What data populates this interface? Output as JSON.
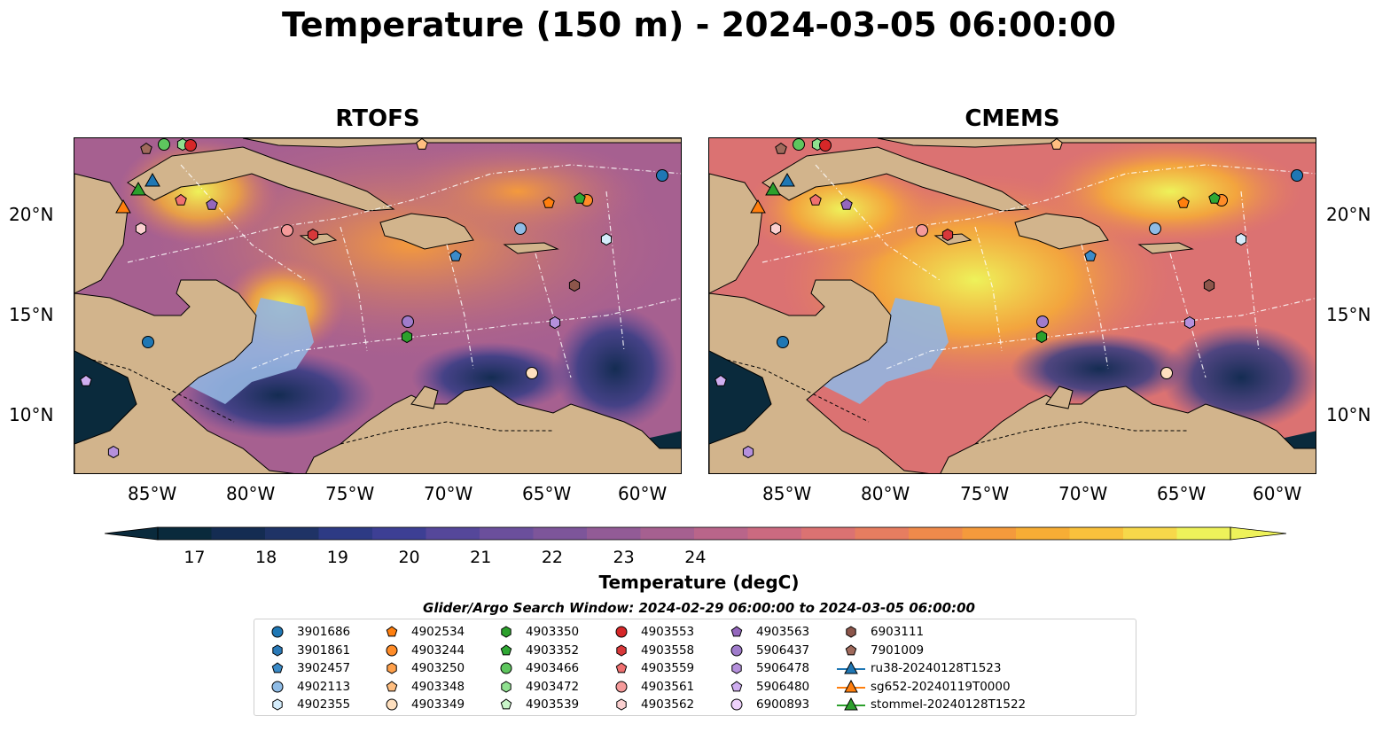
{
  "title": "Temperature (150 m) - 2024-03-05 06:00:00",
  "panels": [
    {
      "title": "RTOFS"
    },
    {
      "title": "CMEMS"
    }
  ],
  "axes": {
    "x_ticks": [
      "85°W",
      "80°W",
      "75°W",
      "70°W",
      "65°W",
      "60°W"
    ],
    "y_ticks": [
      "20°N",
      "15°N",
      "10°N"
    ]
  },
  "colorbar": {
    "ticks": [
      "17",
      "18",
      "19",
      "20",
      "21",
      "22",
      "23",
      "24"
    ],
    "label": "Temperature (degC)",
    "range": [
      16.5,
      24.75
    ],
    "extend": "both",
    "colors": [
      "#0a2a3c",
      "#142c52",
      "#1f3366",
      "#2d3a84",
      "#3d3f94",
      "#55479a",
      "#6b4f9c",
      "#7d559a",
      "#925b96",
      "#a66090",
      "#b9658a",
      "#cb6a80",
      "#db7272",
      "#e67d60",
      "#ef8a4b",
      "#f49a3c",
      "#f7ad35",
      "#f9c13c",
      "#f7d84a",
      "#eef25a"
    ]
  },
  "search_window": "Glider/Argo Search Window: 2024-02-29 06:00:00 to 2024-03-05 06:00:00",
  "legend": [
    {
      "label": "3901686",
      "marker": "circle",
      "color": "#1f77b4"
    },
    {
      "label": "3901861",
      "marker": "hexagon",
      "color": "#2a7ab8"
    },
    {
      "label": "3902457",
      "marker": "pentagon",
      "color": "#3b8bc8"
    },
    {
      "label": "4902113",
      "marker": "circle",
      "color": "#8fbce6"
    },
    {
      "label": "4902355",
      "marker": "hexagon",
      "color": "#d4ecfb"
    },
    {
      "label": "4902534",
      "marker": "pentagon",
      "color": "#ff7f0e"
    },
    {
      "label": "4903244",
      "marker": "circle",
      "color": "#ff8c28"
    },
    {
      "label": "4903250",
      "marker": "hexagon",
      "color": "#ffa04a"
    },
    {
      "label": "4903348",
      "marker": "pentagon",
      "color": "#ffbe80"
    },
    {
      "label": "4903349",
      "marker": "circle",
      "color": "#ffe0bf"
    },
    {
      "label": "4903350",
      "marker": "hexagon",
      "color": "#2ca02c"
    },
    {
      "label": "4903352",
      "marker": "pentagon",
      "color": "#2fa834"
    },
    {
      "label": "4903466",
      "marker": "circle",
      "color": "#5ec65e"
    },
    {
      "label": "4903472",
      "marker": "hexagon",
      "color": "#8fe08f"
    },
    {
      "label": "4903539",
      "marker": "pentagon",
      "color": "#c9f5c9"
    },
    {
      "label": "4903553",
      "marker": "circle",
      "color": "#d62728"
    },
    {
      "label": "4903558",
      "marker": "hexagon",
      "color": "#d8383a"
    },
    {
      "label": "4903559",
      "marker": "pentagon",
      "color": "#f07070"
    },
    {
      "label": "4903561",
      "marker": "circle",
      "color": "#f59a9a"
    },
    {
      "label": "4903562",
      "marker": "hexagon",
      "color": "#fbd0d0"
    },
    {
      "label": "4903563",
      "marker": "pentagon",
      "color": "#9467bd"
    },
    {
      "label": "5906437",
      "marker": "circle",
      "color": "#a07ccc"
    },
    {
      "label": "5906478",
      "marker": "hexagon",
      "color": "#b590dc"
    },
    {
      "label": "5906480",
      "marker": "pentagon",
      "color": "#cfaef0"
    },
    {
      "label": "6900893",
      "marker": "circle",
      "color": "#eed2fb"
    },
    {
      "label": "6903111",
      "marker": "hexagon",
      "color": "#8c564b"
    },
    {
      "label": "7901009",
      "marker": "pentagon",
      "color": "#a06a5c"
    },
    {
      "label": "ru38-20240128T1523",
      "marker": "triangle-line",
      "color": "#1f77b4"
    },
    {
      "label": "sg652-20240119T0000",
      "marker": "triangle-line",
      "color": "#ff7f0e"
    },
    {
      "label": "stommel-20240128T1522",
      "marker": "triangle-line",
      "color": "#2ca02c"
    }
  ]
}
